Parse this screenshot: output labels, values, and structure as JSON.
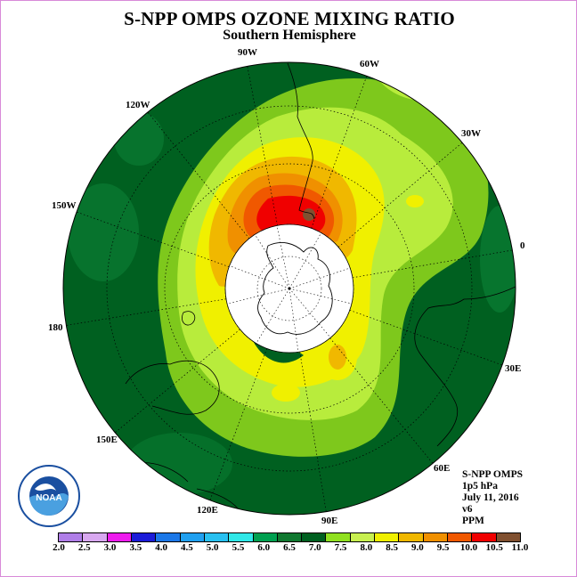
{
  "title": "S-NPP OMPS OZONE MIXING RATIO",
  "subtitle": "Southern Hemisphere",
  "info": {
    "instrument": "S-NPP OMPS",
    "level": "1p5 hPa",
    "date": "July 11, 2016",
    "version": "v6",
    "units": "PPM"
  },
  "logo": {
    "text": "NOAA",
    "icon": "noaa-logo-icon"
  },
  "colorbar": {
    "ticks": [
      "2.0",
      "2.5",
      "3.0",
      "3.5",
      "4.0",
      "4.5",
      "5.0",
      "5.5",
      "6.0",
      "6.5",
      "7.0",
      "7.5",
      "8.0",
      "8.5",
      "9.0",
      "9.5",
      "10.0",
      "10.5",
      "11.0"
    ],
    "colors": [
      "#b07ee8",
      "#d8a8f0",
      "#ee1cee",
      "#1c1cd8",
      "#1c78e8",
      "#20a0f0",
      "#28c0f0",
      "#30e8e8",
      "#00a050",
      "#107830",
      "#006020",
      "#90e020",
      "#c8f050",
      "#f0f000",
      "#f0b800",
      "#f09000",
      "#f05800",
      "#f00000",
      "#805030"
    ]
  },
  "map": {
    "longitude_labels": [
      "90W",
      "60W",
      "30W",
      "0",
      "30E",
      "60E",
      "90E",
      "120E",
      "150E",
      "180",
      "150W",
      "120W"
    ],
    "projection": "south-polar-stereographic",
    "background_color": "#006020"
  }
}
